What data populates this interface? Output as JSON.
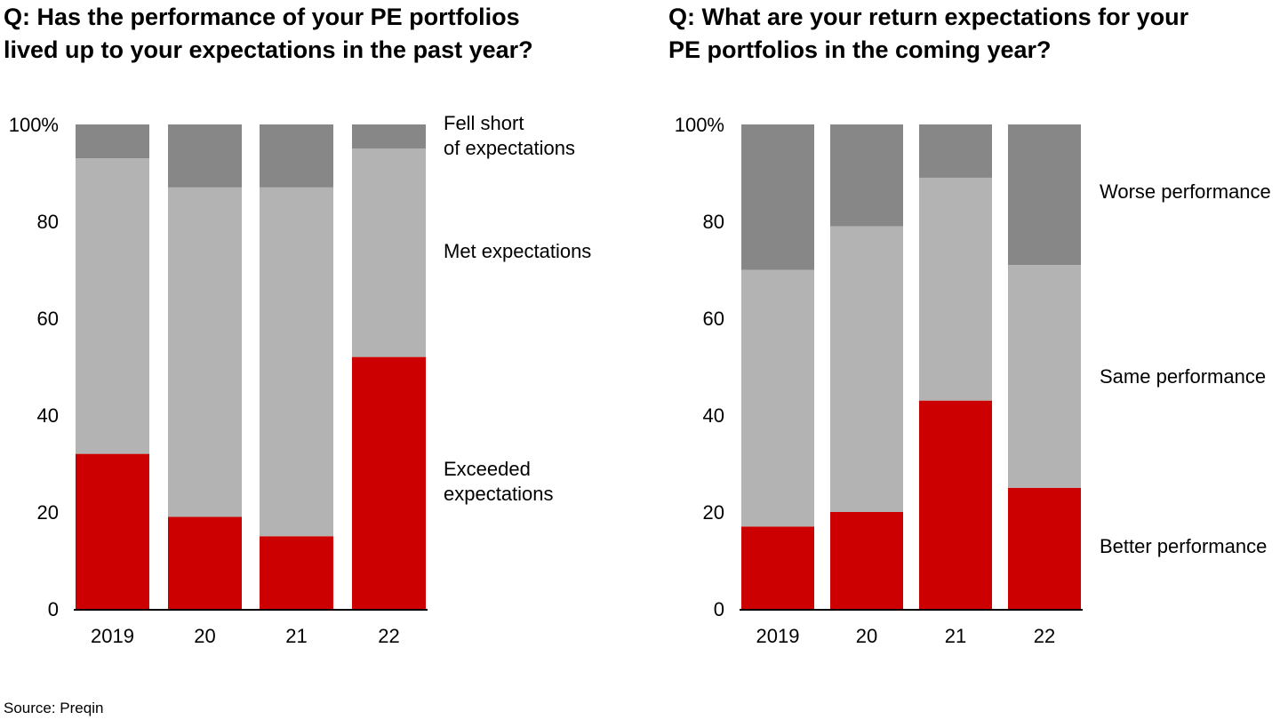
{
  "chart_data": [
    {
      "type": "bar",
      "stacked": true,
      "title": "Q: Has the performance of your PE portfolios\nlived up to your expectations in the past year?",
      "categories": [
        "2019",
        "20",
        "21",
        "22"
      ],
      "yticks": [
        "0",
        "20",
        "40",
        "60",
        "80",
        "100%"
      ],
      "ylim": [
        0,
        100
      ],
      "series": [
        {
          "name": "Exceeded\nexpectations",
          "values": [
            32,
            19,
            15,
            52
          ],
          "color": "#cc0000"
        },
        {
          "name": "Met expectations",
          "values": [
            61,
            68,
            72,
            43
          ],
          "color": "#b3b3b3"
        },
        {
          "name": "Fell short\nof expectations",
          "values": [
            7,
            13,
            13,
            5
          ],
          "color": "#878787"
        }
      ],
      "legend": "right"
    },
    {
      "type": "bar",
      "stacked": true,
      "title": "Q: What are your return expectations for your\nPE portfolios in the coming year?",
      "categories": [
        "2019",
        "20",
        "21",
        "22"
      ],
      "yticks": [
        "0",
        "20",
        "40",
        "60",
        "80",
        "100%"
      ],
      "ylim": [
        0,
        100
      ],
      "series": [
        {
          "name": "Better performance",
          "values": [
            17,
            20,
            43,
            25
          ],
          "color": "#cc0000"
        },
        {
          "name": "Same performance",
          "values": [
            53,
            59,
            46,
            46
          ],
          "color": "#b3b3b3"
        },
        {
          "name": "Worse performance",
          "values": [
            30,
            21,
            11,
            29
          ],
          "color": "#878787"
        }
      ],
      "legend": "right"
    }
  ],
  "source": "Source: Preqin"
}
